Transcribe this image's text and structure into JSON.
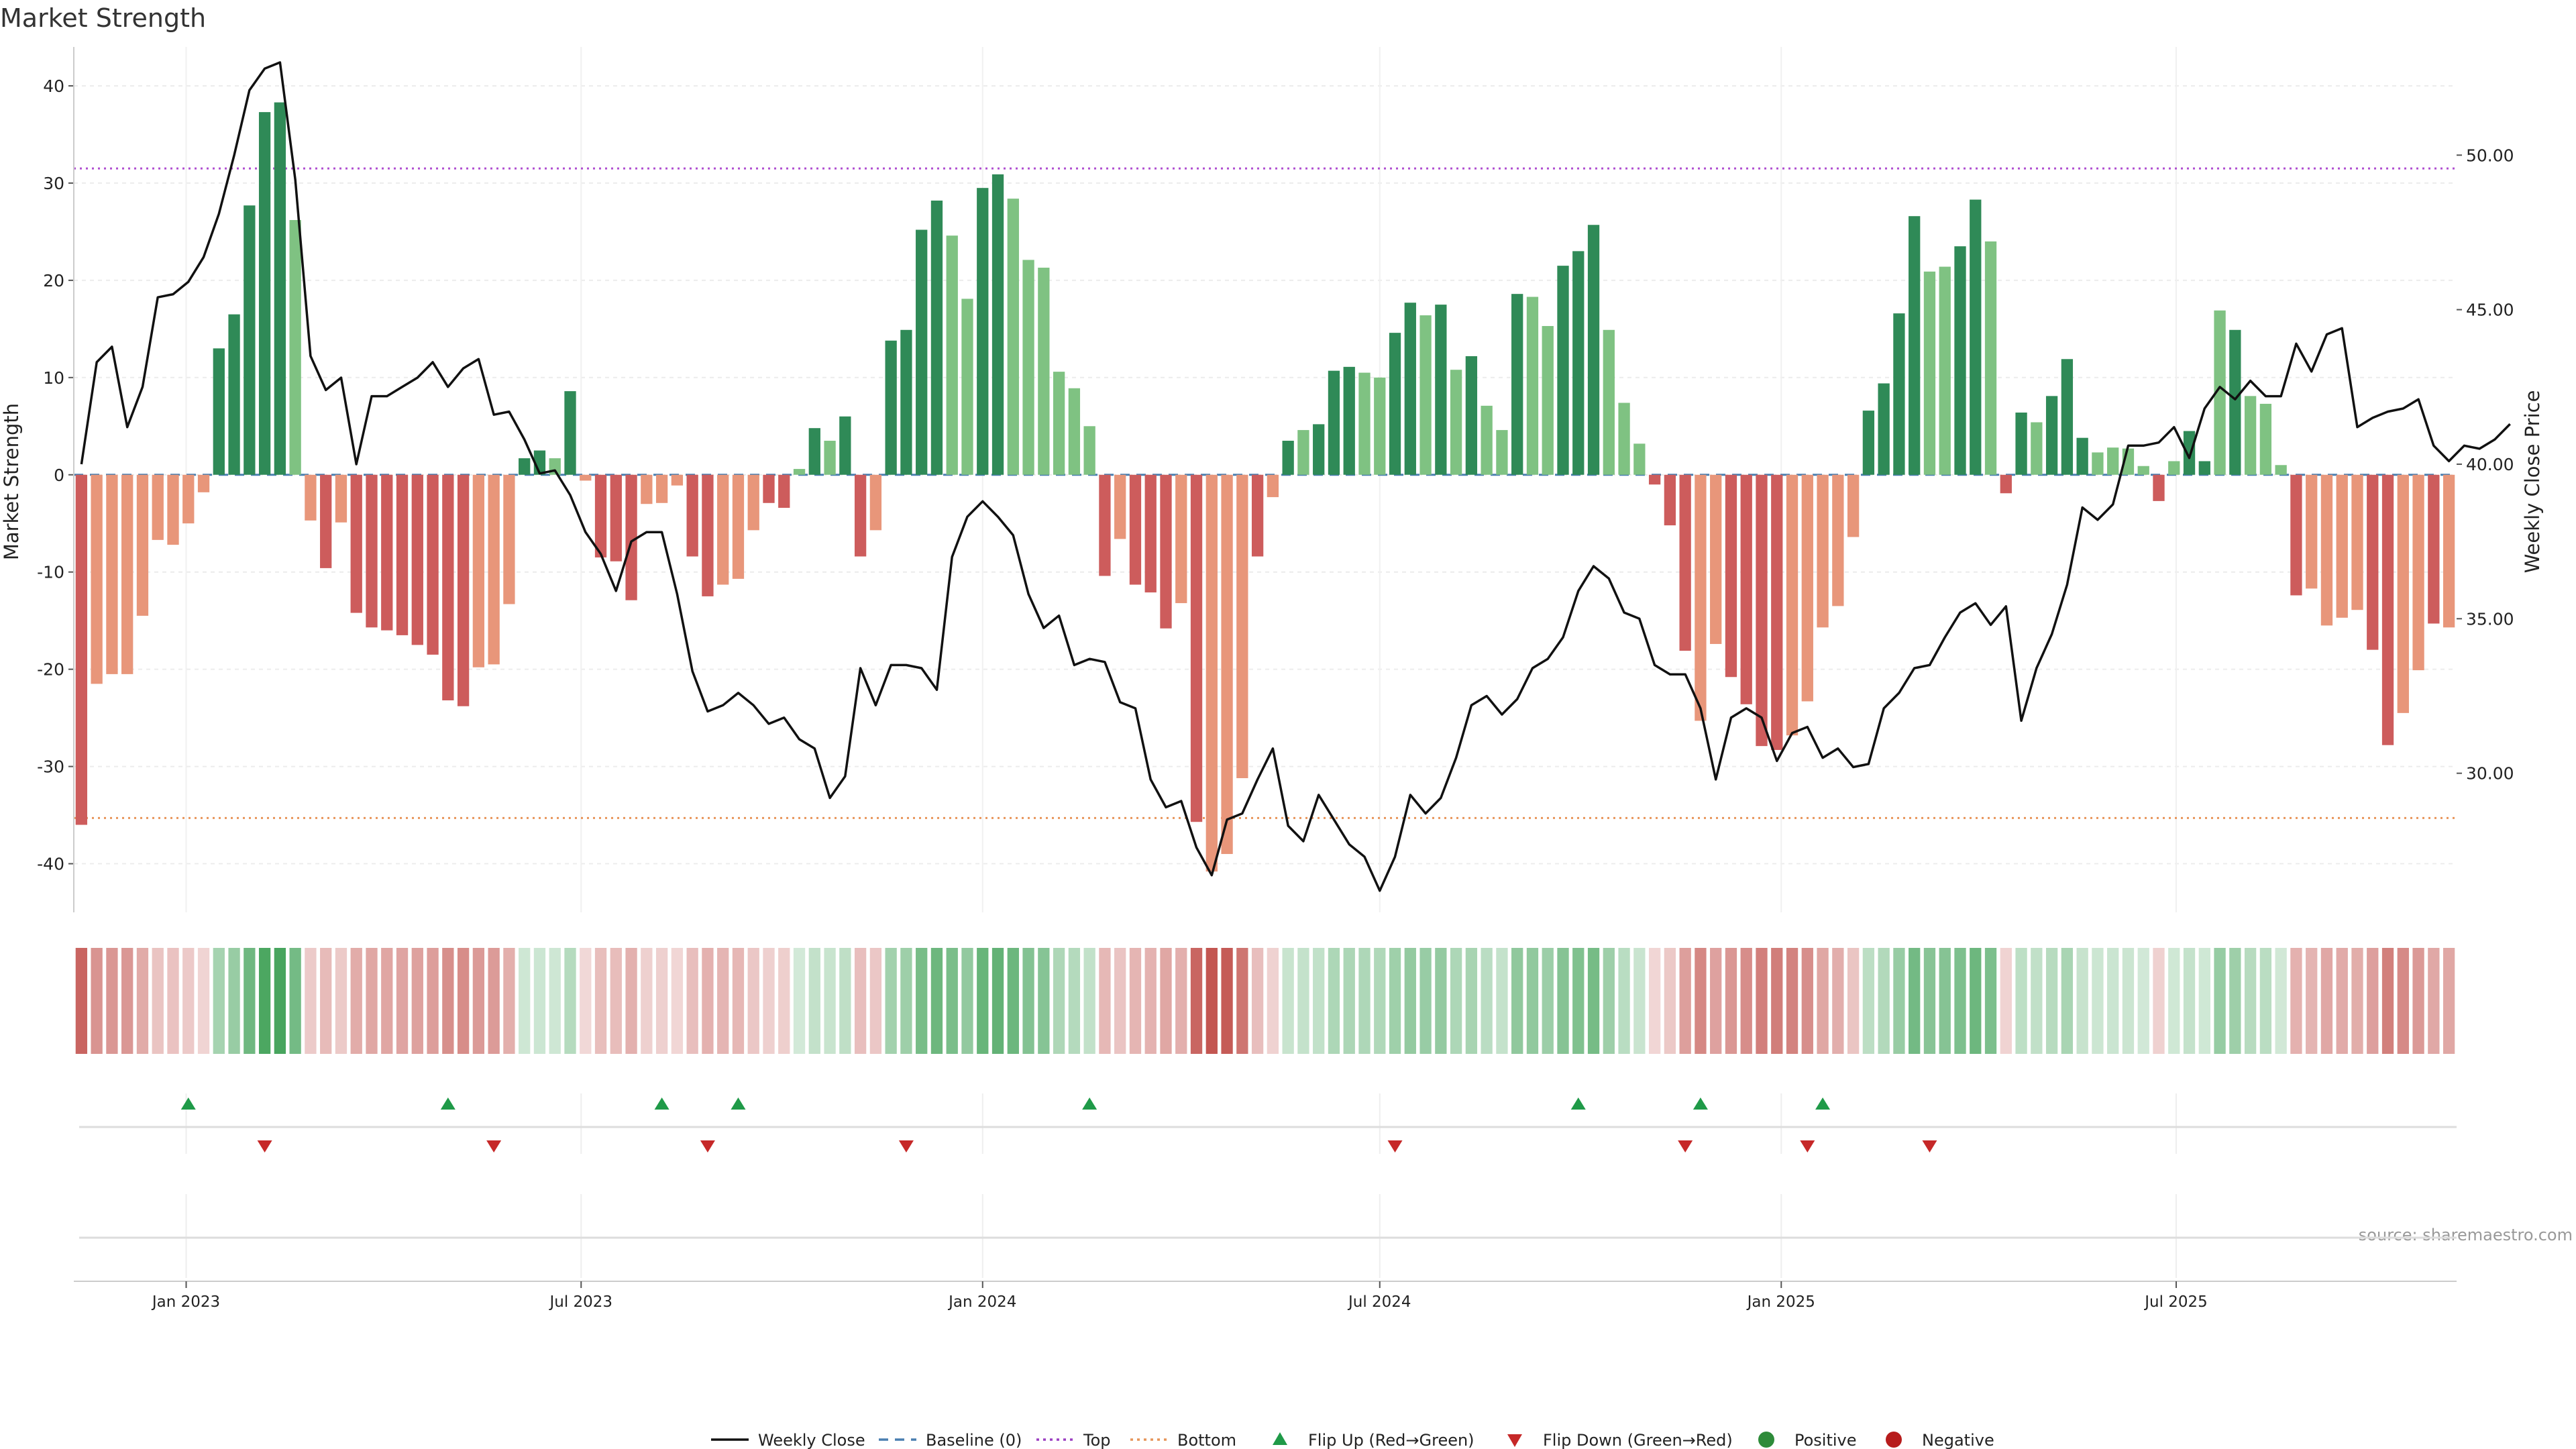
{
  "chart_data": {
    "type": "bar",
    "title": "Market Strength",
    "ylabel": "Market Strength",
    "y2label": "Weekly Close Price",
    "ylim": [
      -45,
      44
    ],
    "y2lim": [
      25.5,
      53.5
    ],
    "yticks": [
      -40,
      -30,
      -20,
      -10,
      0,
      10,
      20,
      30,
      40
    ],
    "y2ticks": [
      "30.00",
      "35.00",
      "40.00",
      "45.00",
      "50.00"
    ],
    "top_level": 31.5,
    "bottom_level": -35.3,
    "x_start": "2022-11-14",
    "week_step": 7,
    "x_ticks": [
      {
        "label": "Jan 2023",
        "date": "2023-01-01"
      },
      {
        "label": "Jul 2023",
        "date": "2023-07-01"
      },
      {
        "label": "Jan 2024",
        "date": "2024-01-01"
      },
      {
        "label": "Jul 2024",
        "date": "2024-07-01"
      },
      {
        "label": "Jan 2025",
        "date": "2025-01-01"
      },
      {
        "label": "Jul 2025",
        "date": "2025-07-01"
      }
    ],
    "strength": [
      -36,
      -21.5,
      -20.5,
      -20.5,
      -14.5,
      -6.7,
      -7.2,
      -5,
      -1.8,
      13,
      16.5,
      27.7,
      37.3,
      38.3,
      26.2,
      -4.7,
      -9.6,
      -4.9,
      -14.2,
      -15.7,
      -16,
      -16.5,
      -17.5,
      -18.5,
      -23.2,
      -23.8,
      -19.8,
      -19.5,
      -13.3,
      1.7,
      2.5,
      1.7,
      8.6,
      -0.6,
      -8.5,
      -8.9,
      -12.9,
      -3,
      -2.9,
      -1.1,
      -8.4,
      -12.5,
      -11.3,
      -10.7,
      -5.7,
      -2.9,
      -3.4,
      0.6,
      4.8,
      3.5,
      6,
      -8.4,
      -5.7,
      13.8,
      14.9,
      25.2,
      28.2,
      24.6,
      18.1,
      29.5,
      30.9,
      28.4,
      22.1,
      21.3,
      10.6,
      8.9,
      5,
      -10.4,
      -6.6,
      -11.3,
      -12.1,
      -15.8,
      -13.2,
      -35.7,
      -40.8,
      -39,
      -31.2,
      -8.4,
      -2.3,
      3.5,
      4.6,
      5.2,
      10.7,
      11.1,
      10.5,
      10,
      14.6,
      17.7,
      16.4,
      17.5,
      10.8,
      12.2,
      7.1,
      4.6,
      18.6,
      18.3,
      15.3,
      21.5,
      23,
      25.7,
      14.9,
      7.4,
      3.2,
      -1,
      -5.2,
      -18.1,
      -25.3,
      -17.4,
      -20.8,
      -23.6,
      -27.9,
      -28.3,
      -26.8,
      -23.3,
      -15.7,
      -13.5,
      -6.4,
      6.6,
      9.4,
      16.6,
      26.6,
      20.9,
      21.4,
      23.5,
      28.3,
      24,
      -1.9,
      6.4,
      5.4,
      8.1,
      11.9,
      3.8,
      2.3,
      2.8,
      2.7,
      0.9,
      -2.7,
      1.4,
      4.5,
      1.4,
      16.9,
      14.9,
      8.1,
      7.3,
      1,
      -12.4,
      -11.7,
      -15.5,
      -14.7,
      -13.9,
      -18,
      -27.8,
      -24.5,
      -20.1,
      -15.3,
      -15.7
    ],
    "shade": [
      2,
      1,
      1,
      1,
      1,
      1,
      1,
      1,
      1,
      2,
      2,
      2,
      2,
      2,
      1,
      1,
      2,
      1,
      2,
      2,
      2,
      2,
      2,
      2,
      2,
      2,
      1,
      1,
      1,
      2,
      2,
      1,
      2,
      1,
      2,
      2,
      2,
      1,
      1,
      1,
      2,
      2,
      1,
      1,
      1,
      2,
      2,
      1,
      2,
      1,
      2,
      2,
      1,
      2,
      2,
      2,
      2,
      1,
      1,
      2,
      2,
      1,
      1,
      1,
      1,
      1,
      1,
      2,
      1,
      2,
      2,
      2,
      1,
      2,
      1,
      1,
      1,
      2,
      1,
      2,
      1,
      2,
      2,
      2,
      1,
      1,
      2,
      2,
      1,
      2,
      1,
      2,
      1,
      1,
      2,
      1,
      1,
      2,
      2,
      2,
      1,
      1,
      1,
      2,
      2,
      2,
      1,
      1,
      2,
      2,
      2,
      2,
      1,
      1,
      1,
      1,
      1,
      2,
      2,
      2,
      2,
      1,
      1,
      2,
      2,
      1,
      2,
      2,
      1,
      2,
      2,
      2,
      1,
      1,
      1,
      1,
      2,
      1,
      2,
      2,
      1,
      2,
      1,
      1,
      1,
      2,
      1,
      1,
      1,
      1,
      2,
      2,
      1,
      1,
      2
    ],
    "weekly_close": [
      40,
      43.3,
      43.8,
      41.2,
      42.5,
      45.4,
      45.5,
      45.9,
      46.7,
      48.1,
      50,
      52.1,
      52.8,
      53,
      49.2,
      43.5,
      42.4,
      42.8,
      40,
      42.2,
      42.2,
      42.5,
      42.8,
      43.3,
      42.5,
      43.1,
      43.4,
      41.6,
      41.7,
      40.8,
      39.7,
      39.8,
      39,
      37.8,
      37.1,
      35.9,
      37.5,
      37.8,
      37.8,
      35.8,
      33.3,
      32,
      32.2,
      32.6,
      32.2,
      31.6,
      31.8,
      31.1,
      30.8,
      29.2,
      29.9,
      33.4,
      32.2,
      33.5,
      33.5,
      33.4,
      32.7,
      37,
      38.3,
      38.8,
      38.3,
      37.7,
      35.8,
      34.7,
      35.1,
      33.5,
      33.7,
      33.6,
      32.3,
      32.1,
      29.8,
      28.9,
      29.1,
      27.6,
      26.7,
      28.5,
      28.7,
      29.8,
      30.8,
      28.3,
      27.8,
      29.3,
      28.5,
      27.7,
      27.3,
      26.2,
      27.3,
      29.3,
      28.7,
      29.2,
      30.5,
      32.2,
      32.5,
      31.9,
      32.4,
      33.4,
      33.7,
      34.4,
      35.9,
      36.7,
      36.3,
      35.2,
      35,
      33.5,
      33.2,
      33.2,
      32.1,
      29.8,
      31.8,
      32.1,
      31.8,
      30.4,
      31.3,
      31.5,
      30.5,
      30.8,
      30.2,
      30.3,
      32.1,
      32.6,
      33.4,
      33.5,
      34.4,
      35.2,
      35.5,
      34.8,
      35.4,
      31.7,
      33.4,
      34.5,
      36.1,
      38.6,
      38.2,
      38.7,
      40.6,
      40.6,
      40.7,
      41.2,
      40.2,
      41.8,
      42.5,
      42.1,
      42.7,
      42.2,
      42.2,
      43.9,
      43,
      44.2,
      44.4,
      41.2,
      41.5,
      41.7,
      41.8,
      42.1,
      40.6,
      40.1,
      40.6,
      40.5,
      40.8,
      41.3
    ],
    "flip_up_weeks": [
      7,
      24,
      38,
      43,
      66,
      98,
      106,
      114
    ],
    "flip_down_weeks": [
      12,
      27,
      41,
      54,
      86,
      105,
      113,
      121
    ],
    "legend": [
      {
        "label": "Weekly Close",
        "icon": "solid-line",
        "color": "#111111"
      },
      {
        "label": "Baseline (0)",
        "icon": "dashed-line",
        "color": "#4a7fb0"
      },
      {
        "label": "Top",
        "icon": "dotted-line",
        "color": "#9b3fc2"
      },
      {
        "label": "Bottom",
        "icon": "dotted-line",
        "color": "#e6955a"
      },
      {
        "label": "Flip Up (Red→Green)",
        "icon": "triangle-up",
        "color": "#1f9a48"
      },
      {
        "label": "Flip Down (Green→Red)",
        "icon": "triangle-down",
        "color": "#c62828"
      },
      {
        "label": "Positive",
        "icon": "circle",
        "color": "#2e8b3a"
      },
      {
        "label": "Negative",
        "icon": "circle",
        "color": "#b71c1c"
      }
    ],
    "source": "source: sharemaestro.com",
    "grid": true,
    "legend_position": "bottom-center",
    "colors": {
      "pos_dark": "#2f8a57",
      "pos_light": "#7fc282",
      "neg_dark": "#cd5c5c",
      "neg_light": "#e8967a",
      "top_line": "#b04fd0",
      "bottom_line": "#e8955a",
      "baseline": "#4a7fb0",
      "price": "#111111",
      "flip_up": "#1f9a48",
      "flip_down": "#c62828"
    }
  }
}
